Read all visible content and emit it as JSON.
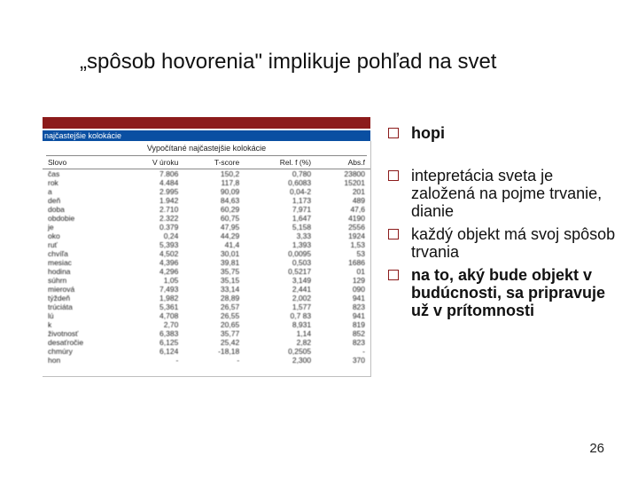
{
  "slide": {
    "title": "„spôsob hovorenia\" implikuje pohľad na svet",
    "page_number": "26"
  },
  "screenshot": {
    "bluebar_text": "najčastejšie kolokácie",
    "header": "Vypočítané najčastejšie kolokácie",
    "columns": [
      "Slovo",
      "V úroku",
      "T-score",
      "Rel. f (%)",
      "Abs.f"
    ],
    "rows": [
      [
        "čas",
        "7.806",
        "150,2",
        "0,780",
        "23800"
      ],
      [
        "rok",
        "4.484",
        "117,8",
        "0,6083",
        "15201"
      ],
      [
        "a",
        "2.995",
        "90,09",
        "0,04-2",
        "201"
      ],
      [
        "deň",
        "1.942",
        "84,63",
        "1,173",
        "489"
      ],
      [
        "doba",
        "2.710",
        "60,29",
        "7,971",
        "47,6"
      ],
      [
        "obdobie",
        "2.322",
        "60,75",
        "1,647",
        "4190"
      ],
      [
        "je",
        "0.379",
        "47,95",
        "5,158",
        "2556"
      ],
      [
        "oko",
        "0,24",
        "44,29",
        "3,33",
        "1924"
      ],
      [
        "ruť",
        "5,393",
        "41,4",
        "1,393",
        "1,53"
      ],
      [
        "chvíľa",
        "4,502",
        "30,01",
        "0,0095",
        "53"
      ],
      [
        "mesiac",
        "4,396",
        "39,81",
        "0,503",
        "1686"
      ],
      [
        "hodina",
        "4,296",
        "35,75",
        "0,5217",
        "01"
      ],
      [
        "súhrn",
        "1,05",
        "35,15",
        "3,149",
        "129"
      ],
      [
        "mierová",
        "7,493",
        "33,14",
        "2,441",
        "090"
      ],
      [
        "týždeň",
        "1,982",
        "28,89",
        "2,002",
        "941"
      ],
      [
        "trúciáta",
        "5,361",
        "26,57",
        "1,577",
        "823"
      ],
      [
        "lú",
        "4,708",
        "26,55",
        "0,7 83",
        "941"
      ],
      [
        "k",
        "2,70",
        "20,65",
        "8,931",
        "819"
      ],
      [
        "životnosť",
        "6,383",
        "35,77",
        "1,14",
        "852"
      ],
      [
        "desaťročie",
        "6,125",
        "25,42",
        "2,82",
        "823"
      ],
      [
        "chmúry",
        "6,124",
        "-18,18",
        "0,2505",
        "-"
      ],
      [
        "hon",
        "-",
        "-",
        "2,300",
        "370"
      ]
    ]
  },
  "bullets": {
    "items": [
      {
        "text": "hopi",
        "bold": true,
        "gap": true
      },
      {
        "text": "intepretácia sveta je založená na pojme trvanie, dianie",
        "bold": false,
        "gap": false
      },
      {
        "text": "každý objekt má svoj spôsob trvania",
        "bold": false,
        "gap": false
      },
      {
        "text": "na to, aký bude objekt v budúcnosti, sa pripravuje už v prítomnosti",
        "bold": true,
        "gap": false
      }
    ]
  }
}
